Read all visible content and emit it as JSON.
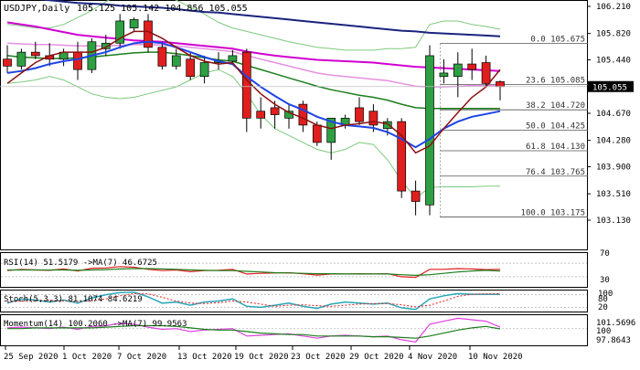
{
  "header": {
    "symbol_label": "USDJPY,Daily",
    "ohlc_label": "105.125 105.142 104.856 105.055"
  },
  "price_axis": {
    "ticks": [
      "106.210",
      "105.820",
      "105.440",
      "105.055",
      "104.670",
      "104.280",
      "103.900",
      "103.510",
      "103.130"
    ],
    "tick_values": [
      106.21,
      105.82,
      105.44,
      105.055,
      104.67,
      104.28,
      103.9,
      103.51,
      103.13
    ],
    "current_price": "105.055",
    "current_value": 105.055
  },
  "fibonacci": {
    "levels": [
      {
        "label": "0.0 105.675",
        "value": 105.675
      },
      {
        "label": "23.6 105.085",
        "value": 105.085
      },
      {
        "label": "38.2 104.720",
        "value": 104.72
      },
      {
        "label": "50.0 104.425",
        "value": 104.425
      },
      {
        "label": "61.8 104.130",
        "value": 104.13
      },
      {
        "label": "76.4 103.765",
        "value": 103.765
      },
      {
        "label": "100.0 103.175",
        "value": 103.175
      }
    ]
  },
  "date_axis": {
    "labels": [
      "25 Sep 2020",
      "1 Oct 2020",
      "7 Oct 2020",
      "13 Oct 2020",
      "19 Oct 2020",
      "23 Oct 2020",
      "29 Oct 2020",
      "4 Nov 2020",
      "10 Nov 2020"
    ]
  },
  "rsi_panel": {
    "label": "RSI(14) 51.5179 ->MA(7) 46.6725",
    "levels": [
      "70",
      "30"
    ]
  },
  "stoch_panel": {
    "label": "Stoch(5,3,3) 81.1074 84.6219",
    "levels": [
      "100",
      "80",
      "20"
    ]
  },
  "momentum_panel": {
    "label": "Momentum(14) 100.2060 ->MA(7) 99.9563",
    "levels": [
      "101.5696",
      "100",
      "97.8643"
    ]
  },
  "colors": {
    "bull": "#2ea043",
    "bear": "#e01e1e",
    "sma_dark_blue": "#1a237e",
    "ma_magenta": "#d000d0",
    "ma_pink": "#e58fe0",
    "ma_green": "#1b7e1b",
    "ma_blue": "#1e44e6",
    "ma_darkred": "#8b1010",
    "bb_green": "#7ec97e"
  },
  "chart_data": {
    "type": "candlestick",
    "dates": [
      "25 Sep",
      "28 Sep",
      "29 Sep",
      "30 Sep",
      "1 Oct",
      "2 Oct",
      "5 Oct",
      "6 Oct",
      "7 Oct",
      "8 Oct",
      "9 Oct",
      "12 Oct",
      "13 Oct",
      "14 Oct",
      "15 Oct",
      "16 Oct",
      "19 Oct",
      "20 Oct",
      "21 Oct",
      "22 Oct",
      "23 Oct",
      "26 Oct",
      "27 Oct",
      "28 Oct",
      "29 Oct",
      "30 Oct",
      "2 Nov",
      "3 Nov",
      "4 Nov",
      "5 Nov",
      "6 Nov",
      "9 Nov",
      "10 Nov",
      "11 Nov",
      "12 Nov",
      "13 Nov"
    ],
    "candles": [
      [
        105.45,
        105.65,
        105.25,
        105.35
      ],
      [
        105.35,
        105.6,
        105.3,
        105.55
      ],
      [
        105.55,
        105.7,
        105.45,
        105.5
      ],
      [
        105.5,
        105.68,
        105.35,
        105.45
      ],
      [
        105.45,
        105.6,
        105.35,
        105.55
      ],
      [
        105.55,
        105.7,
        105.15,
        105.3
      ],
      [
        105.3,
        105.75,
        105.25,
        105.7
      ],
      [
        105.6,
        105.8,
        105.5,
        105.68
      ],
      [
        105.68,
        106.1,
        105.6,
        106.0
      ],
      [
        105.9,
        106.05,
        105.85,
        106.02
      ],
      [
        106.0,
        106.1,
        105.55,
        105.62
      ],
      [
        105.62,
        105.7,
        105.3,
        105.35
      ],
      [
        105.35,
        105.6,
        105.3,
        105.5
      ],
      [
        105.45,
        105.55,
        105.15,
        105.2
      ],
      [
        105.2,
        105.5,
        105.1,
        105.4
      ],
      [
        105.4,
        105.55,
        105.3,
        105.42
      ],
      [
        105.42,
        105.58,
        105.38,
        105.5
      ],
      [
        105.55,
        105.6,
        104.4,
        104.6
      ],
      [
        104.7,
        104.9,
        104.45,
        104.6
      ],
      [
        104.75,
        104.85,
        104.45,
        104.65
      ],
      [
        104.6,
        104.8,
        104.45,
        104.7
      ],
      [
        104.8,
        104.85,
        104.4,
        104.5
      ],
      [
        104.5,
        104.55,
        104.2,
        104.25
      ],
      [
        104.25,
        104.6,
        104.0,
        104.6
      ],
      [
        104.5,
        104.65,
        104.45,
        104.6
      ],
      [
        104.75,
        104.9,
        104.5,
        104.55
      ],
      [
        104.7,
        104.8,
        104.4,
        104.5
      ],
      [
        104.45,
        104.6,
        104.35,
        104.55
      ],
      [
        104.55,
        104.6,
        103.45,
        103.55
      ],
      [
        103.55,
        103.7,
        103.2,
        103.4
      ],
      [
        103.35,
        105.65,
        103.2,
        105.5
      ],
      [
        105.2,
        105.45,
        105.1,
        105.25
      ],
      [
        105.2,
        105.55,
        104.9,
        105.38
      ],
      [
        105.38,
        105.6,
        105.15,
        105.3
      ],
      [
        105.4,
        105.5,
        105.05,
        105.1
      ],
      [
        105.125,
        105.142,
        104.856,
        105.055
      ]
    ],
    "ma_dark_blue": [
      106.35,
      106.33,
      106.32,
      106.3,
      106.28,
      106.26,
      106.25,
      106.24,
      106.22,
      106.21,
      106.2,
      106.19,
      106.17,
      106.15,
      106.13,
      106.12,
      106.1,
      106.08,
      106.06,
      106.04,
      106.02,
      106.0,
      105.98,
      105.96,
      105.94,
      105.92,
      105.9,
      105.88,
      105.86,
      105.85,
      105.83,
      105.82,
      105.81,
      105.8,
      105.79,
      105.78
    ],
    "ma_magenta": [
      105.98,
      105.95,
      105.92,
      105.88,
      105.84,
      105.8,
      105.78,
      105.76,
      105.74,
      105.72,
      105.71,
      105.7,
      105.68,
      105.66,
      105.64,
      105.62,
      105.6,
      105.56,
      105.53,
      105.5,
      105.48,
      105.46,
      105.44,
      105.43,
      105.42,
      105.41,
      105.4,
      105.38,
      105.36,
      105.34,
      105.33,
      105.32,
      105.31,
      105.3,
      105.29,
      105.28
    ],
    "ma_pink": [
      105.68,
      105.67,
      105.66,
      105.66,
      105.65,
      105.64,
      105.64,
      105.64,
      105.65,
      105.66,
      105.66,
      105.65,
      105.64,
      105.62,
      105.6,
      105.58,
      105.56,
      105.5,
      105.45,
      105.4,
      105.35,
      105.3,
      105.25,
      105.22,
      105.2,
      105.18,
      105.16,
      105.14,
      105.1,
      105.06,
      105.05,
      105.05,
      105.06,
      105.07,
      105.07,
      105.07
    ],
    "ma_green": [
      105.5,
      105.48,
      105.47,
      105.46,
      105.46,
      105.47,
      105.48,
      105.5,
      105.52,
      105.54,
      105.55,
      105.55,
      105.53,
      105.5,
      105.47,
      105.44,
      105.42,
      105.36,
      105.3,
      105.24,
      105.18,
      105.12,
      105.06,
      105.01,
      104.97,
      104.93,
      104.9,
      104.86,
      104.8,
      104.75,
      104.74,
      104.74,
      104.74,
      104.74,
      104.74,
      104.74
    ],
    "ma_blue": [
      105.25,
      105.28,
      105.32,
      105.38,
      105.42,
      105.45,
      105.5,
      105.55,
      105.62,
      105.68,
      105.7,
      105.68,
      105.62,
      105.55,
      105.48,
      105.42,
      105.38,
      105.2,
      105.05,
      104.92,
      104.8,
      104.72,
      104.62,
      104.55,
      104.5,
      104.48,
      104.46,
      104.4,
      104.3,
      104.18,
      104.3,
      104.45,
      104.55,
      104.62,
      104.66,
      104.7
    ],
    "ma_darkred": [
      105.1,
      105.25,
      105.4,
      105.5,
      105.55,
      105.55,
      105.55,
      105.62,
      105.75,
      105.85,
      105.85,
      105.75,
      105.62,
      105.5,
      105.42,
      105.38,
      105.4,
      105.15,
      104.95,
      104.8,
      104.68,
      104.6,
      104.5,
      104.45,
      104.5,
      104.52,
      104.55,
      104.52,
      104.35,
      104.1,
      104.2,
      104.45,
      104.68,
      104.9,
      105.05,
      105.3
    ],
    "bb_upper": [
      105.95,
      105.93,
      105.9,
      105.9,
      105.95,
      106.05,
      106.15,
      106.28,
      106.38,
      106.42,
      106.42,
      106.38,
      106.3,
      106.2,
      106.1,
      105.98,
      105.9,
      105.85,
      105.8,
      105.75,
      105.7,
      105.66,
      105.62,
      105.6,
      105.58,
      105.58,
      105.58,
      105.6,
      105.6,
      105.62,
      105.95,
      106.0,
      106.0,
      105.95,
      105.92,
      105.88
    ],
    "bb_lower": [
      105.1,
      105.12,
      105.15,
      105.2,
      105.15,
      105.05,
      104.95,
      104.9,
      104.88,
      104.9,
      104.95,
      105.0,
      105.05,
      105.15,
      105.25,
      105.3,
      105.2,
      104.95,
      104.65,
      104.45,
      104.35,
      104.25,
      104.15,
      104.1,
      104.15,
      104.25,
      104.22,
      104.0,
      103.7,
      103.45,
      103.6,
      103.61,
      103.61,
      103.61,
      103.62,
      103.62
    ],
    "rsi": [
      48,
      52,
      50,
      49,
      53,
      47,
      55,
      56,
      60,
      58,
      52,
      48,
      50,
      45,
      48,
      49,
      52,
      38,
      40,
      41,
      42,
      39,
      35,
      38,
      38,
      39,
      38,
      39,
      30,
      28,
      52,
      52,
      54,
      53,
      51,
      51.5
    ],
    "rsi_ma": [
      50,
      50,
      50,
      50,
      50,
      49,
      50,
      51,
      53,
      54,
      54,
      53,
      52,
      50,
      49,
      48,
      48,
      46,
      44,
      42,
      41,
      40,
      39,
      39,
      38,
      38,
      38,
      38,
      36,
      34,
      36,
      40,
      44,
      47,
      49,
      46.7
    ],
    "stoch_k": [
      40,
      60,
      55,
      45,
      55,
      40,
      65,
      80,
      90,
      92,
      70,
      40,
      45,
      30,
      45,
      50,
      60,
      25,
      20,
      30,
      40,
      25,
      15,
      35,
      45,
      40,
      35,
      40,
      18,
      10,
      60,
      75,
      85,
      82,
      82,
      81.1
    ],
    "stoch_d": [
      45,
      50,
      52,
      53,
      50,
      48,
      52,
      60,
      75,
      85,
      84,
      68,
      50,
      40,
      38,
      42,
      50,
      45,
      35,
      25,
      30,
      32,
      28,
      25,
      30,
      35,
      38,
      38,
      32,
      22,
      30,
      50,
      72,
      82,
      84,
      84.6
    ],
    "momentum": [
      100.1,
      100.2,
      100.1,
      100.0,
      100.2,
      99.9,
      100.3,
      100.4,
      100.7,
      100.6,
      100.2,
      99.9,
      100.0,
      99.6,
      99.8,
      99.9,
      100.0,
      99.0,
      99.1,
      99.2,
      99.3,
      99.0,
      98.7,
      99.0,
      99.1,
      99.0,
      98.9,
      99.0,
      98.5,
      98.2,
      100.6,
      101.0,
      101.4,
      101.2,
      101.0,
      100.2
    ],
    "momentum_ma": [
      100.0,
      100.0,
      100.1,
      100.1,
      100.1,
      100.1,
      100.1,
      100.2,
      100.3,
      100.4,
      100.4,
      100.4,
      100.3,
      100.1,
      99.9,
      99.8,
      99.8,
      99.6,
      99.4,
      99.3,
      99.2,
      99.2,
      99.0,
      99.0,
      99.0,
      99.0,
      98.9,
      98.9,
      98.8,
      98.7,
      99.0,
      99.4,
      99.8,
      100.1,
      100.3,
      99.96
    ]
  }
}
